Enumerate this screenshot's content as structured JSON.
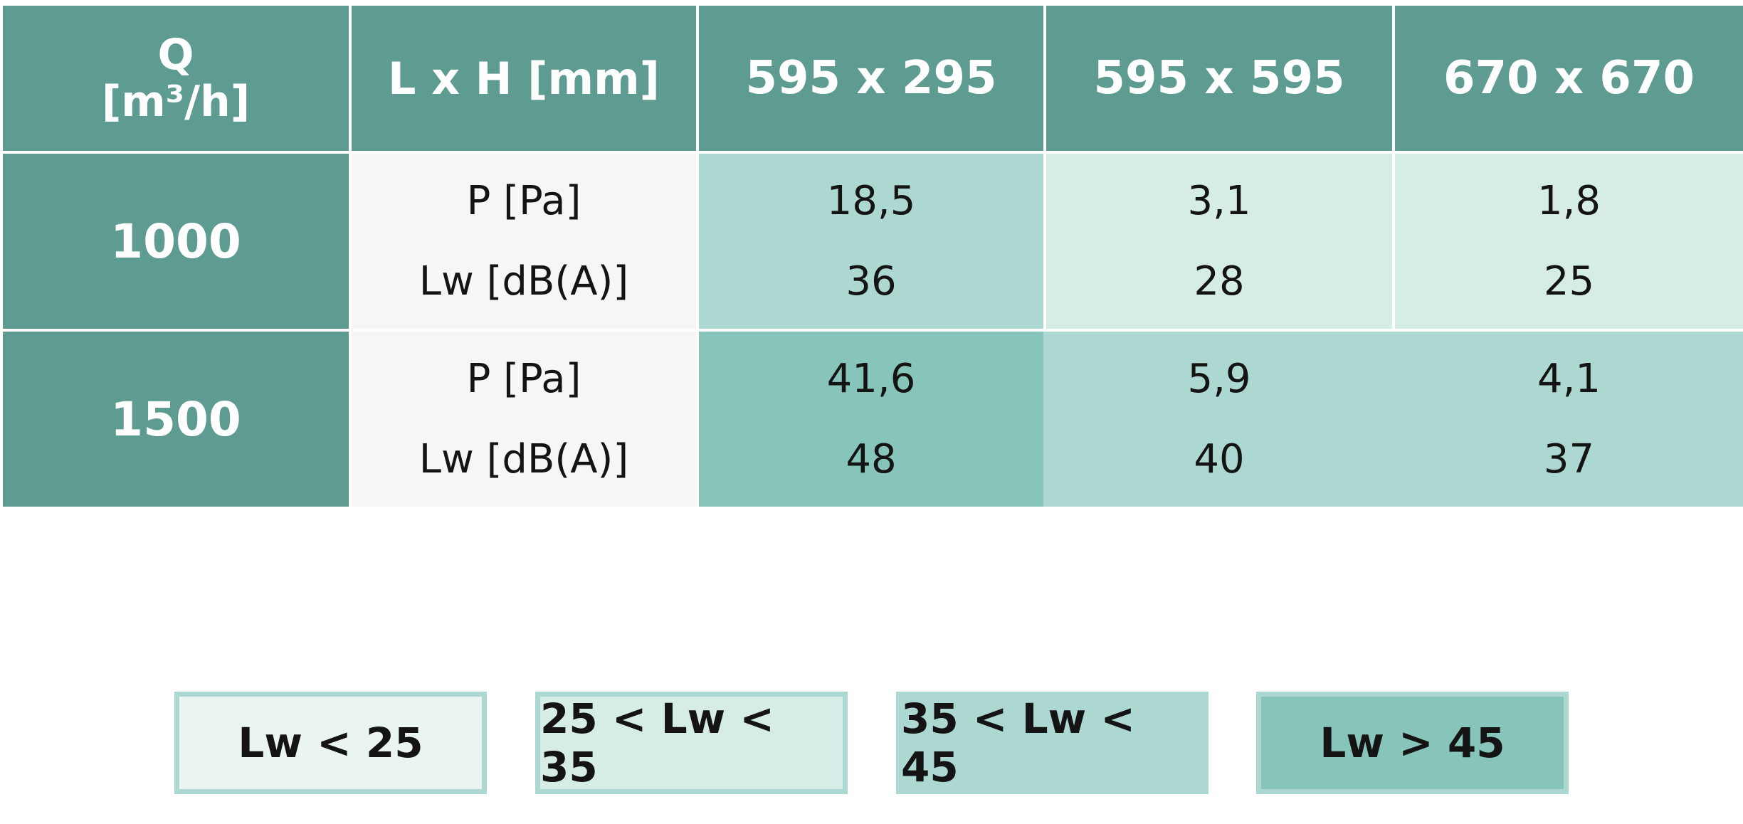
{
  "table": {
    "header": {
      "q_label": "Q",
      "q_unit": "[m³/h]",
      "dim_label": "L x H [mm]",
      "sizes": [
        "595 x 295",
        "595 x 595",
        "670 x 670"
      ]
    },
    "rows": [
      {
        "flow": "1000",
        "param_p": "P [Pa]",
        "param_lw": "Lw [dB(A)]",
        "p_values": [
          "18,5",
          "3,1",
          "1,8"
        ],
        "lw_values": [
          "36",
          "28",
          "25"
        ]
      },
      {
        "flow": "1500",
        "param_p": "P [Pa]",
        "param_lw": "Lw [dB(A)]",
        "p_values": [
          "41,6",
          "5,9",
          "4,1"
        ],
        "lw_values": [
          "48",
          "40",
          "37"
        ]
      }
    ]
  },
  "legend": [
    {
      "label": "Lw < 25",
      "fill": "#eaf4f2",
      "border": "#acd8d1"
    },
    {
      "label": "25 < Lw < 35",
      "fill": "#d5ece7",
      "border": "#acd8d1"
    },
    {
      "label": "35 < Lw < 45",
      "fill": "#acd8d1",
      "border": "#acd8d1"
    },
    {
      "label": "Lw > 45",
      "fill": "#87c5bb",
      "border": "#acd8d1"
    }
  ],
  "colors": {
    "header": "#5e9b90",
    "param_bg": "#f6f6f6",
    "lw_25_35": "#d5ece7",
    "lw_35_45": "#acd8d1",
    "lw_over_45": "#87c5bb"
  }
}
